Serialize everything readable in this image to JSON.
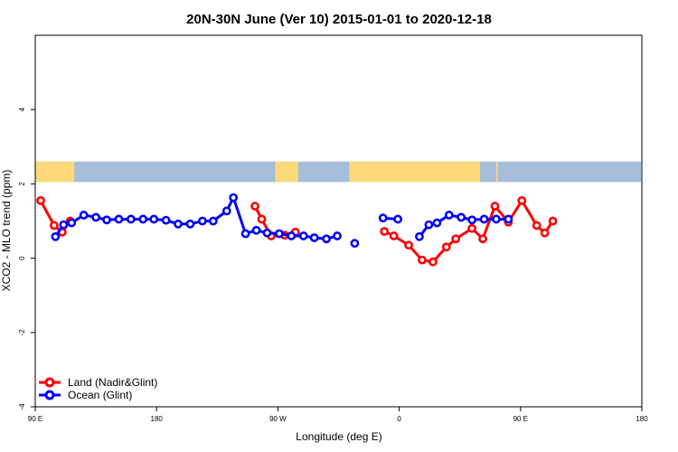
{
  "chart_data": {
    "type": "line",
    "title": "20N-30N June (Ver 10)   2015-01-01 to 2020-12-18",
    "xlabel": "Longitude (deg E)",
    "ylabel": "XCO2 - MLO trend (ppm)",
    "xlim": [
      90,
      450
    ],
    "ylim": [
      -4,
      6
    ],
    "x_ticks": [
      {
        "value": 90,
        "label": "90 E"
      },
      {
        "value": 180,
        "label": "180"
      },
      {
        "value": 270,
        "label": "90 W"
      },
      {
        "value": 360,
        "label": "0"
      },
      {
        "value": 450,
        "label": "90 E"
      },
      {
        "value": 540,
        "label": "180"
      }
    ],
    "y_ticks": [
      {
        "value": -4,
        "label": "-4"
      },
      {
        "value": -2,
        "label": "-2"
      },
      {
        "value": 0,
        "label": "0"
      },
      {
        "value": 2,
        "label": "2"
      },
      {
        "value": 4,
        "label": "4"
      }
    ],
    "legend_position": "bottom-left",
    "colors": {
      "land": "#ff0000",
      "ocean": "#0000ff",
      "map_water": "#a6bddb",
      "map_land": "#fdd97a"
    },
    "series": [
      {
        "name": "Land (Nadir&Glint)",
        "color": "#ff0000",
        "segments": [
          [
            [
              94,
              1.55
            ],
            [
              104,
              0.88
            ],
            [
              110,
              0.7
            ],
            [
              116,
              1.0
            ]
          ],
          [
            [
              253,
              1.4
            ],
            [
              258,
              1.05
            ],
            [
              265,
              0.6
            ],
            [
              275,
              0.62
            ],
            [
              283,
              0.7
            ]
          ],
          [
            [
              349,
              0.72
            ],
            [
              356,
              0.6
            ],
            [
              367,
              0.35
            ],
            [
              377,
              -0.05
            ],
            [
              385,
              -0.1
            ],
            [
              395,
              0.3
            ],
            [
              402,
              0.52
            ],
            [
              414,
              0.8
            ],
            [
              422,
              0.52
            ],
            [
              431,
              1.4
            ],
            [
              441,
              0.97
            ],
            [
              451,
              1.55
            ],
            [
              462,
              0.88
            ],
            [
              468,
              0.68
            ],
            [
              474,
              1.0
            ]
          ]
        ]
      },
      {
        "name": "Ocean (Glint)",
        "color": "#0000ff",
        "segments": [
          [
            [
              105,
              0.58
            ],
            [
              111,
              0.9
            ],
            [
              117,
              0.95
            ],
            [
              126,
              1.16
            ],
            [
              135,
              1.1
            ],
            [
              143,
              1.03
            ],
            [
              152,
              1.05
            ],
            [
              161,
              1.05
            ],
            [
              170,
              1.05
            ],
            [
              178,
              1.05
            ],
            [
              187,
              1.02
            ],
            [
              196,
              0.92
            ],
            [
              205,
              0.92
            ],
            [
              214,
              1.0
            ],
            [
              222,
              1.0
            ],
            [
              232,
              1.27
            ],
            [
              237,
              1.63
            ],
            [
              246,
              0.66
            ],
            [
              254,
              0.75
            ],
            [
              262,
              0.68
            ],
            [
              271,
              0.66
            ],
            [
              280,
              0.6
            ],
            [
              289,
              0.6
            ],
            [
              297,
              0.55
            ],
            [
              306,
              0.52
            ],
            [
              314,
              0.6
            ]
          ],
          [
            [
              327,
              0.4
            ]
          ],
          [
            [
              348,
              1.08
            ],
            [
              359,
              1.05
            ]
          ],
          [
            [
              375,
              0.58
            ],
            [
              382,
              0.9
            ],
            [
              388,
              0.95
            ],
            [
              397,
              1.16
            ],
            [
              406,
              1.1
            ],
            [
              414,
              1.03
            ],
            [
              423,
              1.05
            ],
            [
              432,
              1.05
            ],
            [
              441,
              1.05
            ]
          ]
        ]
      }
    ],
    "land_series_name": "Land (Nadir&Glint)",
    "ocean_series_name": "Ocean (Glint)"
  }
}
